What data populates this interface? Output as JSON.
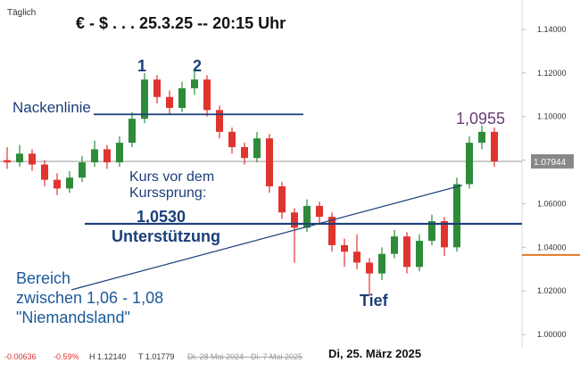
{
  "chart_data": {
    "type": "candlestick",
    "interval": "Täglich",
    "title": "€ - $ . . . 25.3.25 -- 20:15 Uhr",
    "ylim": [
      0.9898,
      1.1535
    ],
    "yticks": [
      {
        "value": 1.0,
        "label": "1.00000"
      },
      {
        "value": 1.02,
        "label": "1.02000"
      },
      {
        "value": 1.04,
        "label": "1.04000"
      },
      {
        "value": 1.06,
        "label": "1.06000"
      },
      {
        "value": 1.08,
        "label": "1.08000"
      },
      {
        "value": 1.1,
        "label": "1.10000"
      },
      {
        "value": 1.12,
        "label": "1.12000"
      },
      {
        "value": 1.14,
        "label": "1.14000"
      }
    ],
    "up_color": "#2e8b3a",
    "down_color": "#e0342f",
    "ohlc": [
      [
        1.08,
        1.086,
        1.076,
        1.079
      ],
      [
        1.079,
        1.087,
        1.077,
        1.083
      ],
      [
        1.083,
        1.085,
        1.075,
        1.078
      ],
      [
        1.078,
        1.08,
        1.068,
        1.071
      ],
      [
        1.071,
        1.074,
        1.064,
        1.067
      ],
      [
        1.067,
        1.075,
        1.065,
        1.072
      ],
      [
        1.072,
        1.082,
        1.07,
        1.079
      ],
      [
        1.079,
        1.089,
        1.077,
        1.085
      ],
      [
        1.085,
        1.087,
        1.076,
        1.079
      ],
      [
        1.079,
        1.091,
        1.077,
        1.088
      ],
      [
        1.088,
        1.102,
        1.086,
        1.099
      ],
      [
        1.099,
        1.12,
        1.097,
        1.117
      ],
      [
        1.117,
        1.119,
        1.106,
        1.109
      ],
      [
        1.109,
        1.112,
        1.101,
        1.104
      ],
      [
        1.104,
        1.116,
        1.102,
        1.113
      ],
      [
        1.113,
        1.1214,
        1.11,
        1.117
      ],
      [
        1.117,
        1.119,
        1.1,
        1.103
      ],
      [
        1.103,
        1.105,
        1.09,
        1.093
      ],
      [
        1.093,
        1.095,
        1.083,
        1.086
      ],
      [
        1.086,
        1.088,
        1.078,
        1.081
      ],
      [
        1.081,
        1.093,
        1.079,
        1.09
      ],
      [
        1.09,
        1.092,
        1.065,
        1.068
      ],
      [
        1.068,
        1.07,
        1.053,
        1.056
      ],
      [
        1.056,
        1.058,
        1.033,
        1.049
      ],
      [
        1.049,
        1.062,
        1.047,
        1.059
      ],
      [
        1.059,
        1.061,
        1.051,
        1.054
      ],
      [
        1.054,
        1.056,
        1.038,
        1.041
      ],
      [
        1.041,
        1.044,
        1.031,
        1.038
      ],
      [
        1.038,
        1.046,
        1.03,
        1.033
      ],
      [
        1.033,
        1.035,
        1.0178,
        1.028
      ],
      [
        1.028,
        1.04,
        1.025,
        1.037
      ],
      [
        1.037,
        1.048,
        1.035,
        1.045
      ],
      [
        1.045,
        1.047,
        1.028,
        1.031
      ],
      [
        1.031,
        1.046,
        1.029,
        1.043
      ],
      [
        1.043,
        1.055,
        1.041,
        1.052
      ],
      [
        1.052,
        1.054,
        1.036,
        1.04
      ],
      [
        1.04,
        1.072,
        1.038,
        1.069
      ],
      [
        1.069,
        1.091,
        1.067,
        1.088
      ],
      [
        1.088,
        1.096,
        1.085,
        1.093
      ],
      [
        1.093,
        1.095,
        1.077,
        1.0794
      ]
    ],
    "last_price": {
      "value": 1.07944,
      "label": "1.07944"
    },
    "levels": {
      "neckline": 1.101,
      "support": 1.0508,
      "trend": [
        1.0205,
        1.0685
      ],
      "marker": 1.0365
    },
    "annotations": {
      "peak1": "1",
      "peak2": "2",
      "neckline": "Nackenlinie",
      "high": "1,0955",
      "before_jump": [
        "Kurs vor dem",
        "Kurssprung:"
      ],
      "support_value": "1,0530",
      "support": "Unterstützung",
      "zone": [
        "Bereich",
        "zwischen 1,06 - 1,08",
        "\"Niemandsland\""
      ],
      "low": "Tief"
    },
    "footer": {
      "change": "-0.00636",
      "change_pct": "-0.59%",
      "high": "H 1.12140",
      "low": "T 1.01779",
      "range": "Di. 28 Mai 2024 - Di. 7 Mai 2025",
      "date": "Di, 25. März 2025"
    }
  }
}
